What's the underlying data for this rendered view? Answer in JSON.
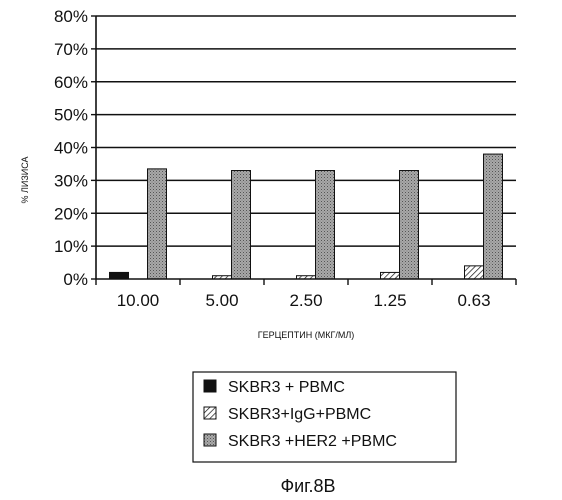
{
  "chart_data": {
    "type": "bar",
    "categories": [
      "10.00",
      "5.00",
      "2.50",
      "1.25",
      "0.63"
    ],
    "series": [
      {
        "name": "SKBR3 + PBMC",
        "values": [
          2,
          0,
          0,
          0,
          0
        ],
        "fill": "solid",
        "color": "#111111"
      },
      {
        "name": "SKBR3+IgG+PBMC",
        "values": [
          0,
          1,
          1,
          2,
          4
        ],
        "fill": "hatch",
        "color": "#ffffff"
      },
      {
        "name": "SKBR3 +HER2 +PBMC",
        "values": [
          33.5,
          33,
          33,
          33,
          38
        ],
        "fill": "dotted",
        "color": "#9a9a9a"
      }
    ],
    "ylim": [
      0,
      80
    ],
    "yticks": [
      0,
      10,
      20,
      30,
      40,
      50,
      60,
      70,
      80
    ],
    "ytick_labels": [
      "0%",
      "10%",
      "20%",
      "30%",
      "40%",
      "50%",
      "60%",
      "70%",
      "80%"
    ],
    "ylabel": "% ЛИЗИСА",
    "xlabel": "ГЕРЦЕПТИН (МКГ/МЛ)",
    "grid": true,
    "legend_position": "bottom"
  },
  "caption": "Фиг.8В"
}
